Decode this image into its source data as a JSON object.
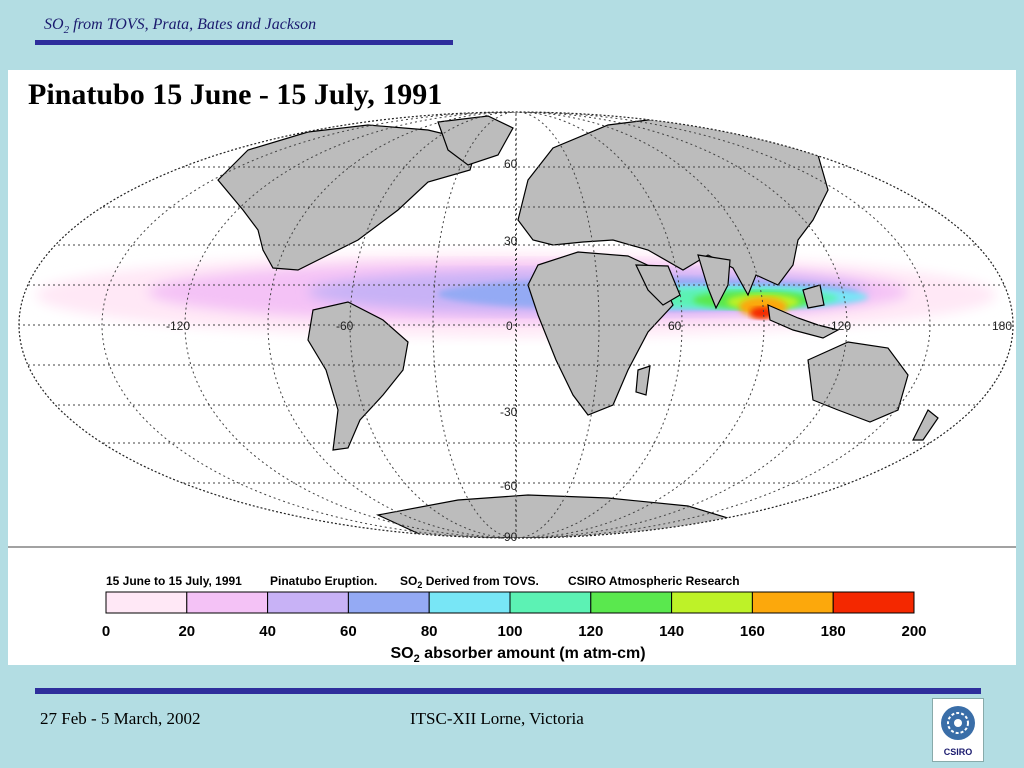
{
  "header": {
    "title_prefix": "SO",
    "title_sub": "2",
    "title_rest": " from TOVS, Prata, Bates and Jackson"
  },
  "slide": {
    "heading": "Pinatubo  15 June - 15 July, 1991"
  },
  "map": {
    "projection": "Mollweide",
    "lat_labels": [
      "60",
      "30",
      "-30",
      "-60",
      "-90"
    ],
    "lon_labels": [
      "-120",
      "-60",
      "0",
      "60",
      "120",
      "180"
    ],
    "colors": {
      "land": "#bcbcbc",
      "coast": "#000000",
      "grid": "#444444"
    }
  },
  "legend": {
    "caption_1": "15 June to 15 July, 1991",
    "caption_2": "Pinatubo Eruption.",
    "caption_3_prefix": "SO",
    "caption_3_sub": "2",
    "caption_3_rest": " Derived from TOVS.",
    "caption_4": "CSIRO Atmospheric Research",
    "colors": [
      "#ffe8f6",
      "#f4c2f6",
      "#c8b2f6",
      "#94aaf4",
      "#78e6f6",
      "#5cf2b4",
      "#5ae84e",
      "#bef228",
      "#fca80c",
      "#f42800"
    ],
    "ticks": [
      "0",
      "20",
      "40",
      "60",
      "80",
      "100",
      "120",
      "140",
      "160",
      "180",
      "200"
    ],
    "axis_label_prefix": "SO",
    "axis_label_sub": "2",
    "axis_label_rest": " absorber amount (m atm-cm)"
  },
  "footer": {
    "date": "27 Feb - 5 March, 2002",
    "event": "ITSC-XII Lorne, Victoria",
    "logo_text": "CSIRO"
  }
}
